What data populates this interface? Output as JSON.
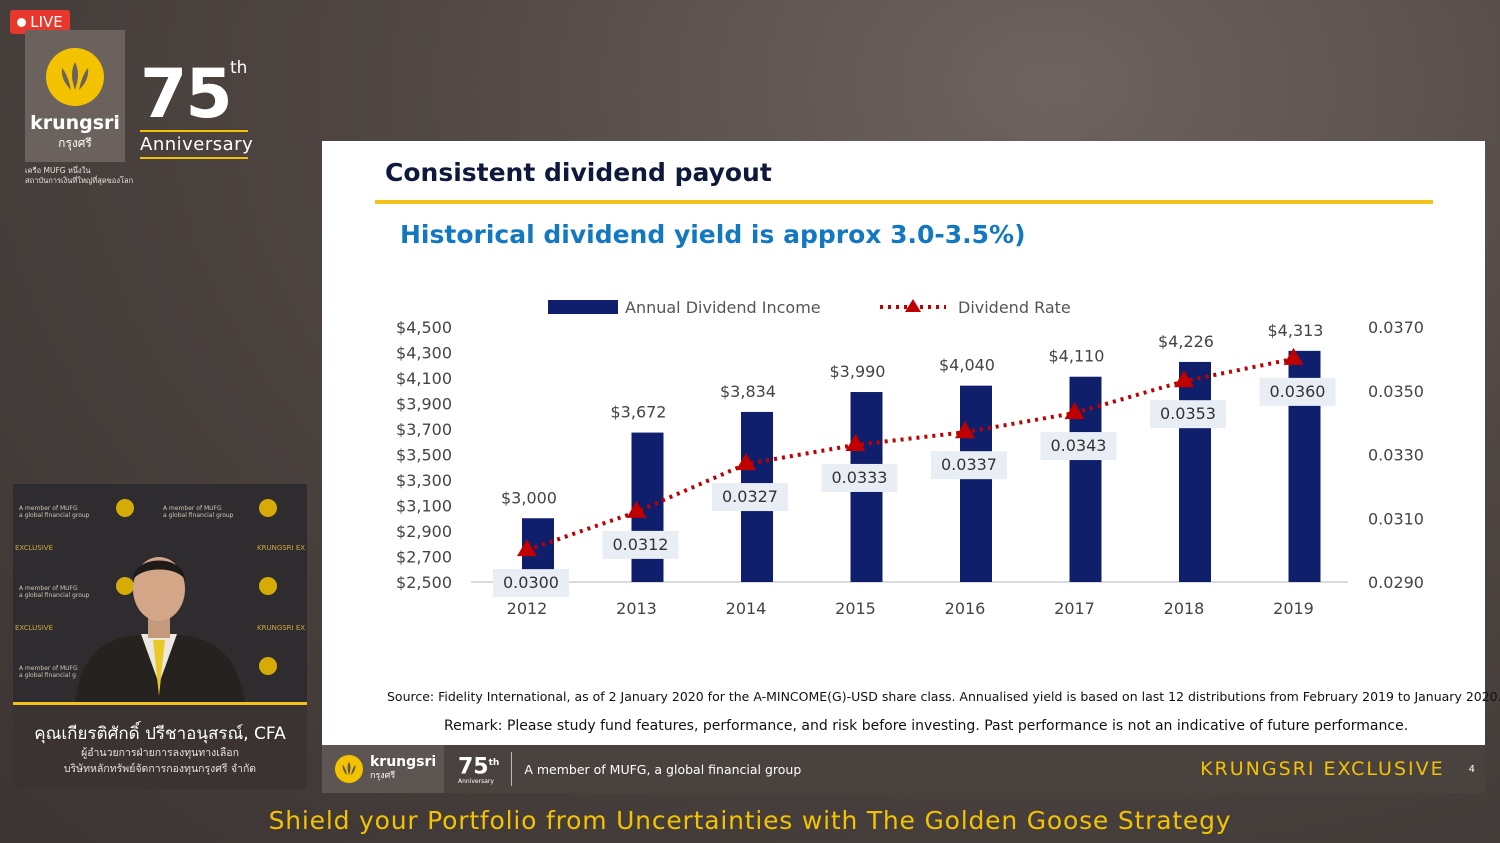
{
  "stream": {
    "live_label": "LIVE"
  },
  "brand": {
    "name": "krungsri",
    "thai": "กรุงศรี",
    "mufg_note_1": "เครือ MUFG หนึ่งใน",
    "mufg_note_2": "สถาบันการเงินที่ใหญ่ที่สุดของโลก",
    "anniversary_number": "75",
    "anniversary_suffix": "th",
    "anniversary_word": "Anniversary"
  },
  "slide": {
    "title": "Consistent dividend payout",
    "subtitle": "Historical dividend yield is approx 3.0-3.5%)",
    "source": "Source: Fidelity International, as of 2 January 2020 for the A-MINCOME(G)-USD share class. Annualised yield is based on last 12 distributions from February 2019 to January 2020.",
    "remark": "Remark: Please study fund features, performance, and risk before investing. Past performance is not an indicative of future performance."
  },
  "chart_data": {
    "type": "bar",
    "categories": [
      "2012",
      "2013",
      "2014",
      "2015",
      "2016",
      "2017",
      "2018",
      "2019"
    ],
    "series": [
      {
        "name": "Annual Dividend Income",
        "type": "bar",
        "axis": "left",
        "values": [
          3000,
          3672,
          3834,
          3990,
          4040,
          4110,
          4226,
          4313
        ],
        "labels": [
          "$3,000",
          "$3,672",
          "$3,834",
          "$3,990",
          "$4,040",
          "$4,110",
          "$4,226",
          "$4,313"
        ],
        "color": "#0f1f6b"
      },
      {
        "name": "Dividend Rate",
        "type": "line",
        "axis": "right",
        "values": [
          0.03,
          0.0312,
          0.0327,
          0.0333,
          0.0337,
          0.0343,
          0.0353,
          0.036
        ],
        "labels": [
          "0.0300",
          "0.0312",
          "0.0327",
          "0.0333",
          "0.0337",
          "0.0343",
          "0.0353",
          "0.0360"
        ],
        "color": "#c00000"
      }
    ],
    "y_left_ticks": [
      "$4,500",
      "$4,300",
      "$4,100",
      "$3,900",
      "$3,700",
      "$3,500",
      "$3,300",
      "$3,100",
      "$2,900",
      "$2,700",
      "$2,500"
    ],
    "y_left_lim": [
      2500,
      4500
    ],
    "y_right_ticks": [
      "0.0370",
      "0.0350",
      "0.0330",
      "0.0310",
      "0.0290"
    ],
    "y_right_lim": [
      0.029,
      0.037
    ],
    "legend_position": "top",
    "grid": false
  },
  "footer": {
    "logo_name": "krungsri",
    "logo_thai": "กรุงศรี",
    "anniversary_number": "75",
    "anniversary_suffix": "th",
    "anniversary_small": "Anniversary",
    "member_text": "A member of MUFG, a global financial group",
    "exclusive": "KRUNGSRI EXCLUSIVE",
    "page_number": "4"
  },
  "speaker": {
    "name": "คุณเกียรติศักดิ์ ปรีชาอนุสรณ์, CFA",
    "role": "ผู้อำนวยการฝ่ายการลงทุนทางเลือก",
    "org": "บริษัทหลักทรัพย์จัดการกองทุนกรุงศรี จำกัด"
  },
  "caption": "Shield your Portfolio from Uncertainties with The Golden Goose Strategy"
}
